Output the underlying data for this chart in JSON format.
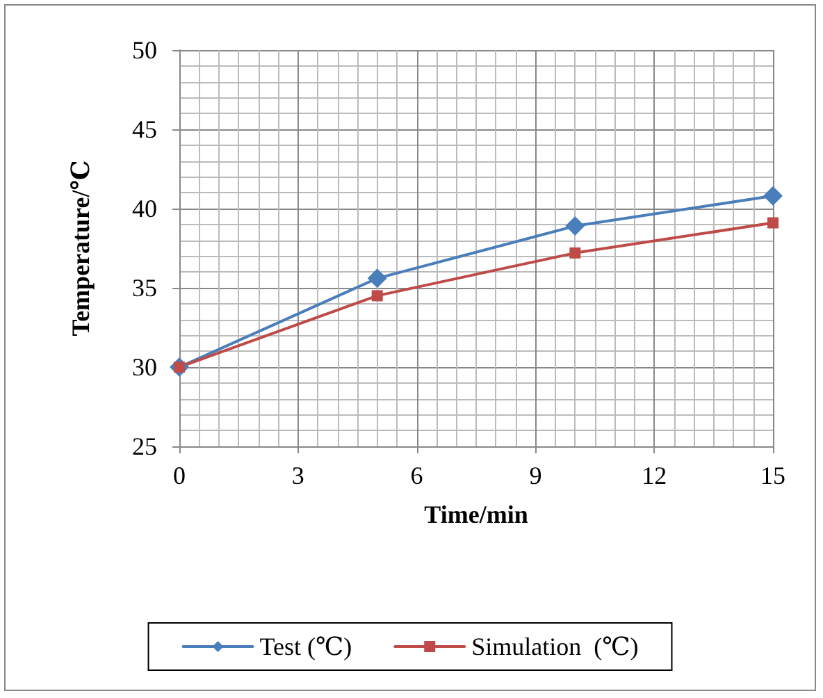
{
  "chart_data": {
    "type": "line",
    "xlabel": "Time/min",
    "ylabel": "Temperature/℃",
    "x": [
      0,
      5,
      10,
      15
    ],
    "series": [
      {
        "name": "Test (℃)",
        "color": "#4a7ebb",
        "marker": "diamond",
        "values": [
          30,
          35.6,
          38.9,
          40.8
        ]
      },
      {
        "name": "Simulation  (℃)",
        "color": "#be4b48",
        "marker": "square",
        "values": [
          30,
          34.5,
          37.2,
          39.1
        ]
      }
    ],
    "xlim": [
      0,
      15
    ],
    "xticks": [
      0,
      3,
      6,
      9,
      12,
      15
    ],
    "ylim": [
      25,
      50
    ],
    "yticks": [
      25,
      30,
      35,
      40,
      45,
      50
    ],
    "grid": true,
    "legend": "bottom",
    "line_style": "solid"
  }
}
